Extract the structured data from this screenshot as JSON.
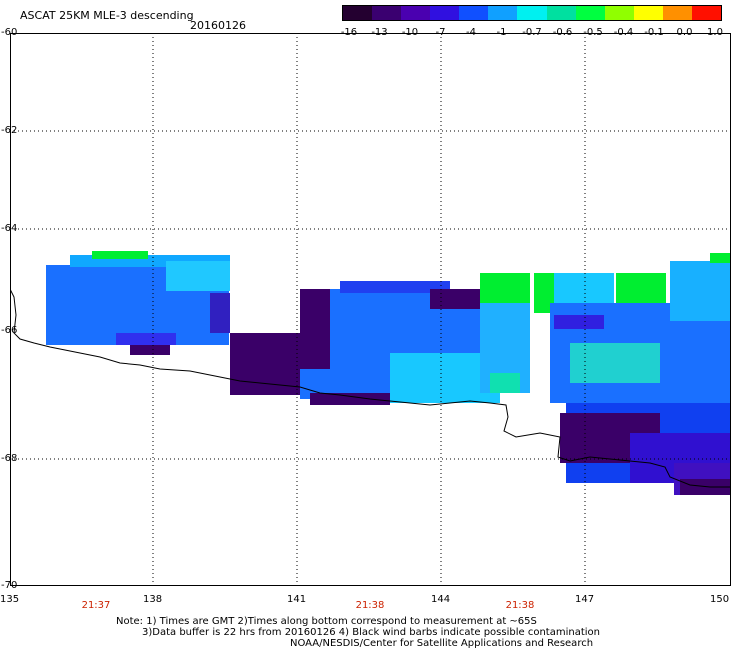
{
  "header": {
    "title": "ASCAT 25KM MLE-3 descending",
    "date": "20160126"
  },
  "colorbar": {
    "labels": [
      "-16",
      "-13",
      "-10",
      "-7",
      "-4",
      "-1",
      "-0.7",
      "-0.6",
      "-0.5",
      "-0.4",
      "-0.1",
      "0.0",
      "1.0"
    ],
    "colors": [
      "#240030",
      "#3a0070",
      "#4a00b0",
      "#3010e0",
      "#1050ff",
      "#10a0ff",
      "#00f0f0",
      "#00e0a0",
      "#00ff40",
      "#90ff00",
      "#ffff00",
      "#ff9000",
      "#ff1000"
    ]
  },
  "map": {
    "lon_labels": [
      "135",
      "138",
      "141",
      "144",
      "147",
      "150"
    ],
    "lat_labels": [
      "-60",
      "-62",
      "-64",
      "-66",
      "-68",
      "-70"
    ],
    "time_labels": [
      "21:37",
      "21:38",
      "21:38"
    ],
    "swath_color_land": "#3a0068",
    "swath_color_mid": "#1a70ff",
    "swath_color_high": "#00ee30"
  },
  "notes": {
    "line1": "Note: 1) Times are GMT 2)Times along bottom correspond to measurement at ~65S",
    "line2": "3)Data buffer is 22 hrs from 20160126 4) Black wind barbs indicate possible contamination",
    "line3": "NOAA/NESDIS/Center for Satellite Applications and Research"
  }
}
